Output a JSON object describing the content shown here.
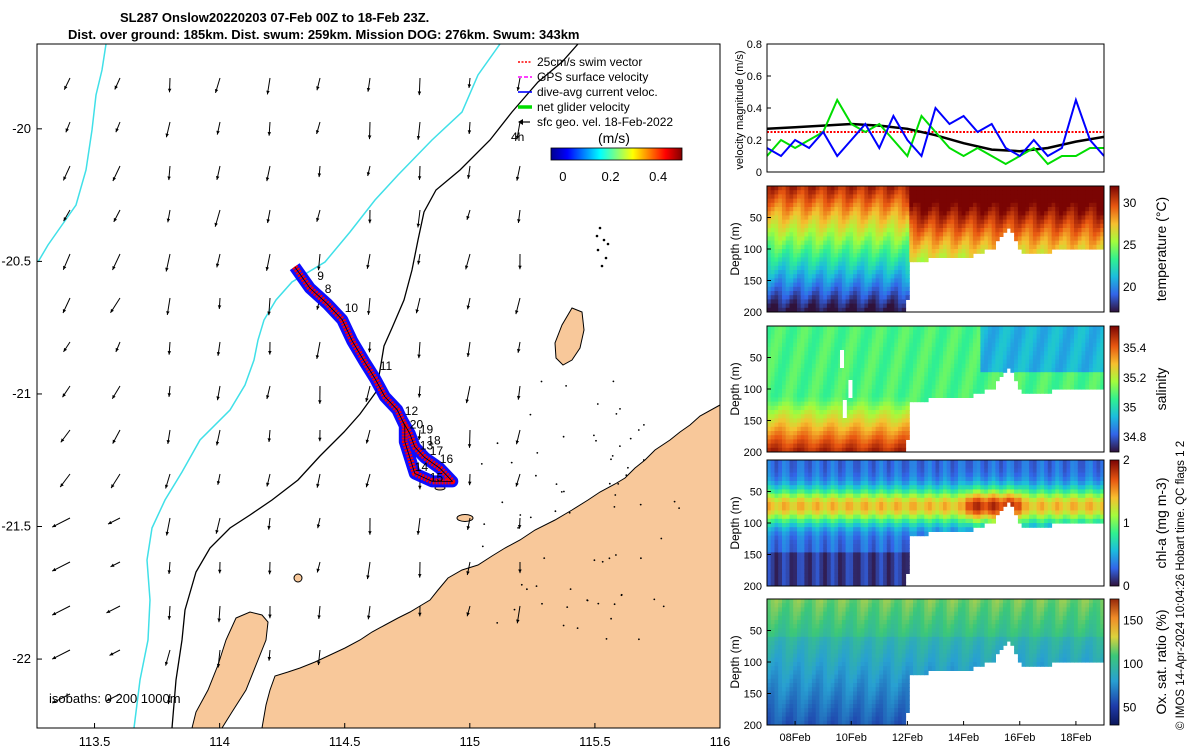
{
  "title_line1": "SL287 Onslow20220203 07-Feb 00Z to 18-Feb 23Z.",
  "title_line2": "Dist. over ground: 185km. Dist. swum: 259km. Mission DOG: 276km. Swum: 343km",
  "colors": {
    "land": "#F8C89A",
    "coast_isobath": "#40E0E8",
    "track_red": "#FF0000",
    "track_blue": "#0000FF",
    "net_green": "#00DD00",
    "black": "#000000"
  },
  "chart_data": [
    {
      "type": "map",
      "x_ticks": [
        "113.5",
        "114",
        "114.5",
        "115",
        "115.5",
        "116"
      ],
      "y_ticks": [
        "-20",
        "-20.5",
        "-21",
        "-21.5",
        "-22"
      ],
      "xlim": [
        113.27,
        116.0
      ],
      "ylim": [
        -22.26,
        -19.68
      ],
      "legend": [
        {
          "label": "25cm/s swim vector",
          "color": "#FF0000",
          "style": "dotted"
        },
        {
          "label": "GPS surface velocity",
          "color": "#FF00FF",
          "style": "dashed"
        },
        {
          "label": "dive-avg current veloc.",
          "color": "#0000FF",
          "style": "solid"
        },
        {
          "label": "net glider velocity",
          "color": "#00DD00",
          "style": "thick"
        },
        {
          "label": "sfc geo. vel. 18-Feb-2022",
          "color": "#000000",
          "style": "arrow"
        }
      ],
      "scale_arrow_label": "4h",
      "colorbar_title": "(m/s)",
      "colorbar_ticks": [
        "0",
        "0.2",
        "0.4"
      ],
      "colorbar_range": [
        -0.05,
        0.5
      ],
      "isobath_label": "isobaths: 0  200  1000m",
      "day_labels": [
        {
          "day": "9",
          "lon": 114.39,
          "lat": -20.57
        },
        {
          "day": "8",
          "lon": 114.42,
          "lat": -20.62
        },
        {
          "day": "10",
          "lon": 114.5,
          "lat": -20.69
        },
        {
          "day": "11",
          "lon": 114.64,
          "lat": -20.91
        },
        {
          "day": "12",
          "lon": 114.74,
          "lat": -21.08
        },
        {
          "day": "20",
          "lon": 114.76,
          "lat": -21.13
        },
        {
          "day": "19",
          "lon": 114.8,
          "lat": -21.15
        },
        {
          "day": "18",
          "lon": 114.83,
          "lat": -21.19
        },
        {
          "day": "13",
          "lon": 114.8,
          "lat": -21.21
        },
        {
          "day": "17",
          "lon": 114.84,
          "lat": -21.23
        },
        {
          "day": "16",
          "lon": 114.88,
          "lat": -21.26
        },
        {
          "day": "14",
          "lon": 114.78,
          "lat": -21.29
        },
        {
          "day": "15",
          "lon": 114.84,
          "lat": -21.33
        }
      ],
      "glider_track": [
        [
          114.3,
          -20.52
        ],
        [
          114.36,
          -20.6
        ],
        [
          114.43,
          -20.66
        ],
        [
          114.49,
          -20.72
        ],
        [
          114.53,
          -20.8
        ],
        [
          114.58,
          -20.88
        ],
        [
          114.62,
          -20.94
        ],
        [
          114.66,
          -21.01
        ],
        [
          114.71,
          -21.06
        ],
        [
          114.74,
          -21.12
        ],
        [
          114.74,
          -21.18
        ],
        [
          114.76,
          -21.24
        ],
        [
          114.78,
          -21.3
        ],
        [
          114.85,
          -21.33
        ],
        [
          114.93,
          -21.33
        ],
        [
          114.88,
          -21.28
        ],
        [
          114.82,
          -21.24
        ],
        [
          114.78,
          -21.2
        ],
        [
          114.76,
          -21.15
        ],
        [
          114.73,
          -21.1
        ]
      ],
      "geo_velocity_u_v": {
        "description": "field mostly southward, 0.05-0.3 m/s, westward-southward near 113.4"
      }
    },
    {
      "type": "line",
      "ylabel": "velocity magnitude (m/s)",
      "ylim": [
        0,
        0.8
      ],
      "y_ticks": [
        "0",
        "0.2",
        "0.4",
        "0.6",
        "0.8"
      ],
      "x_range_days": [
        7,
        19
      ],
      "series": [
        {
          "color": "#FF0000",
          "style": "dotted",
          "values": [
            [
              7,
              0.25
            ],
            [
              19,
              0.25
            ]
          ]
        },
        {
          "color": "#000000",
          "style": "thick",
          "values": [
            [
              7,
              0.27
            ],
            [
              8,
              0.28
            ],
            [
              9,
              0.29
            ],
            [
              10,
              0.3
            ],
            [
              11,
              0.29
            ],
            [
              12,
              0.27
            ],
            [
              13,
              0.23
            ],
            [
              14,
              0.18
            ],
            [
              15,
              0.14
            ],
            [
              16,
              0.13
            ],
            [
              17,
              0.15
            ],
            [
              18,
              0.19
            ],
            [
              19,
              0.22
            ]
          ]
        },
        {
          "color": "#00DD00",
          "style": "solid",
          "values": [
            [
              7,
              0.1
            ],
            [
              7.5,
              0.2
            ],
            [
              8,
              0.15
            ],
            [
              8.5,
              0.2
            ],
            [
              9,
              0.25
            ],
            [
              9.5,
              0.45
            ],
            [
              10,
              0.3
            ],
            [
              10.5,
              0.25
            ],
            [
              11,
              0.3
            ],
            [
              11.5,
              0.2
            ],
            [
              12,
              0.1
            ],
            [
              12.5,
              0.35
            ],
            [
              13,
              0.25
            ],
            [
              13.5,
              0.15
            ],
            [
              14,
              0.1
            ],
            [
              14.5,
              0.15
            ],
            [
              15,
              0.1
            ],
            [
              15.5,
              0.05
            ],
            [
              16,
              0.1
            ],
            [
              16.5,
              0.15
            ],
            [
              17,
              0.05
            ],
            [
              17.5,
              0.1
            ],
            [
              18,
              0.1
            ],
            [
              18.5,
              0.15
            ],
            [
              19,
              0.15
            ]
          ]
        },
        {
          "color": "#0000FF",
          "style": "solid",
          "values": [
            [
              7,
              0.15
            ],
            [
              7.5,
              0.1
            ],
            [
              8,
              0.2
            ],
            [
              8.5,
              0.15
            ],
            [
              9,
              0.25
            ],
            [
              9.5,
              0.1
            ],
            [
              10,
              0.2
            ],
            [
              10.5,
              0.3
            ],
            [
              11,
              0.15
            ],
            [
              11.5,
              0.35
            ],
            [
              12,
              0.2
            ],
            [
              12.5,
              0.1
            ],
            [
              13,
              0.4
            ],
            [
              13.5,
              0.3
            ],
            [
              14,
              0.35
            ],
            [
              14.5,
              0.25
            ],
            [
              15,
              0.3
            ],
            [
              15.5,
              0.15
            ],
            [
              16,
              0.1
            ],
            [
              16.5,
              0.2
            ],
            [
              17,
              0.1
            ],
            [
              17.5,
              0.15
            ],
            [
              18,
              0.45
            ],
            [
              18.5,
              0.2
            ],
            [
              19,
              0.1
            ]
          ]
        }
      ]
    },
    {
      "type": "heatmap",
      "ylabel": "Depth (m)",
      "clabel": "temperature (°C)",
      "crange": [
        17,
        32
      ],
      "cticks": [
        "20",
        "25",
        "30"
      ],
      "y_ticks": [
        "0",
        "50",
        "100",
        "150",
        "200"
      ],
      "profile_dive_depth_m": [
        [
          7,
          200
        ],
        [
          11.9,
          200
        ],
        [
          12,
          120
        ],
        [
          13,
          110
        ],
        [
          14,
          110
        ],
        [
          15,
          95
        ],
        [
          15.5,
          60
        ],
        [
          16,
          100
        ],
        [
          17,
          100
        ],
        [
          18,
          98
        ],
        [
          19,
          100
        ]
      ],
      "description": "Temperature 27-31 °C in mixed layer, cooling to ~18 °C near 200 m."
    },
    {
      "type": "heatmap",
      "ylabel": "Depth (m)",
      "clabel": "salinity",
      "crange": [
        34.7,
        35.55
      ],
      "cticks": [
        "34.8",
        "35",
        "35.2",
        "35.4"
      ],
      "y_ticks": [
        "0",
        "50",
        "100",
        "150",
        "200"
      ],
      "description": "Salinity ~35.1 surface, maximum ~35.5 near 180 m before 12-Feb."
    },
    {
      "type": "heatmap",
      "ylabel": "Depth (m)",
      "clabel": "chl-a (mg m-3)",
      "crange": [
        0,
        2
      ],
      "cticks": [
        "0",
        "1",
        "2"
      ],
      "y_ticks": [
        "0",
        "50",
        "100",
        "150",
        "200"
      ],
      "description": "Chlorophyll maximum 1-2 mg m-3 between 40 and 100 m."
    },
    {
      "type": "heatmap",
      "ylabel": "Depth (m)",
      "clabel": "Ox. sat. ratio (%)",
      "crange": [
        30,
        175
      ],
      "cticks": [
        "50",
        "100",
        "150"
      ],
      "y_ticks": [
        "0",
        "50",
        "100",
        "150",
        "200"
      ],
      "x_ticks": [
        "08Feb",
        "10Feb",
        "12Feb",
        "14Feb",
        "16Feb",
        "18Feb"
      ],
      "description": "Oxygen saturation ~110 % surface to ~75 % at 200 m."
    }
  ],
  "footer_note": "© IMOS 14-Apr-2024 10:04:26 Hobart time. QC flags 1  2"
}
